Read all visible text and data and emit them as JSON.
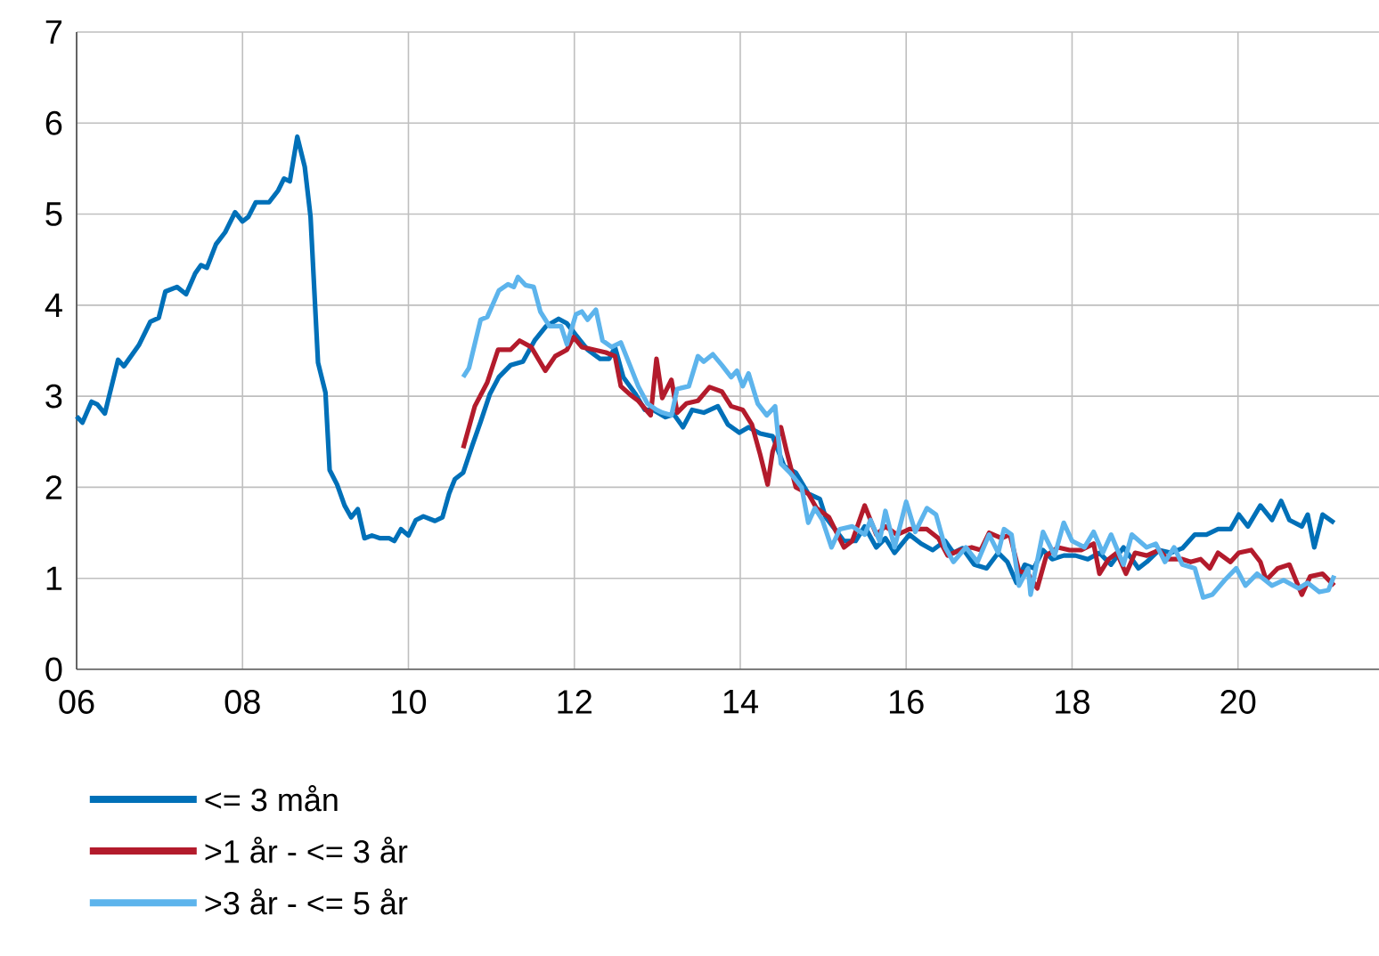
{
  "chart_data": {
    "type": "line",
    "xlim": [
      2006,
      2021.7
    ],
    "ylim": [
      0,
      7
    ],
    "xticks": [
      {
        "value": 2006,
        "label": "06"
      },
      {
        "value": 2008,
        "label": "08"
      },
      {
        "value": 2010,
        "label": "10"
      },
      {
        "value": 2012,
        "label": "12"
      },
      {
        "value": 2014,
        "label": "14"
      },
      {
        "value": 2016,
        "label": "16"
      },
      {
        "value": 2018,
        "label": "18"
      },
      {
        "value": 2020,
        "label": "20"
      }
    ],
    "yticks": [
      0,
      1,
      2,
      3,
      4,
      5,
      6,
      7
    ],
    "grid": true,
    "legend": "bottom",
    "series": [
      {
        "name": "<= 3 mån",
        "color": "#0070b8",
        "x": [
          2006.0,
          2006.07,
          2006.18,
          2006.25,
          2006.34,
          2006.5,
          2006.57,
          2006.75,
          2006.89,
          2006.99,
          2007.07,
          2007.21,
          2007.32,
          2007.43,
          2007.5,
          2007.57,
          2007.68,
          2007.79,
          2007.91,
          2008.0,
          2008.07,
          2008.16,
          2008.32,
          2008.43,
          2008.5,
          2008.57,
          2008.66,
          2008.75,
          2008.82,
          2008.91,
          2009.0,
          2009.05,
          2009.14,
          2009.23,
          2009.31,
          2009.39,
          2009.47,
          2009.56,
          2009.66,
          2009.77,
          2009.83,
          2009.91,
          2010.0,
          2010.09,
          2010.18,
          2010.32,
          2010.41,
          2010.49,
          2010.56,
          2010.66,
          2010.77,
          2010.87,
          2010.98,
          2011.09,
          2011.23,
          2011.38,
          2011.52,
          2011.66,
          2011.81,
          2011.91,
          2012.02,
          2012.16,
          2012.31,
          2012.42,
          2012.49,
          2012.59,
          2012.74,
          2012.85,
          2012.95,
          2013.1,
          2013.2,
          2013.31,
          2013.42,
          2013.56,
          2013.73,
          2013.85,
          2013.99,
          2014.1,
          2014.24,
          2014.39,
          2014.53,
          2014.67,
          2014.82,
          2014.96,
          2015.03,
          2015.14,
          2015.25,
          2015.39,
          2015.5,
          2015.64,
          2015.75,
          2015.86,
          2016.04,
          2016.18,
          2016.32,
          2016.47,
          2016.57,
          2016.68,
          2016.82,
          2016.97,
          2017.11,
          2017.22,
          2017.33,
          2017.43,
          2017.54,
          2017.65,
          2017.76,
          2017.9,
          2018.04,
          2018.19,
          2018.33,
          2018.47,
          2018.62,
          2018.8,
          2018.9,
          2019.05,
          2019.19,
          2019.33,
          2019.48,
          2019.62,
          2019.76,
          2019.91,
          2020.01,
          2020.12,
          2020.27,
          2020.41,
          2020.52,
          2020.62,
          2020.77,
          2020.84,
          2020.92,
          2021.02,
          2021.16
        ],
        "values": [
          2.78,
          2.71,
          2.94,
          2.91,
          2.81,
          3.4,
          3.33,
          3.56,
          3.82,
          3.86,
          4.15,
          4.2,
          4.12,
          4.35,
          4.44,
          4.41,
          4.67,
          4.8,
          5.02,
          4.92,
          4.97,
          5.13,
          5.13,
          5.26,
          5.39,
          5.36,
          5.85,
          5.52,
          4.97,
          3.37,
          3.04,
          2.19,
          2.03,
          1.8,
          1.67,
          1.76,
          1.44,
          1.47,
          1.44,
          1.44,
          1.41,
          1.54,
          1.47,
          1.64,
          1.68,
          1.63,
          1.67,
          1.93,
          2.09,
          2.16,
          2.46,
          2.72,
          3.02,
          3.21,
          3.34,
          3.38,
          3.61,
          3.77,
          3.85,
          3.8,
          3.67,
          3.51,
          3.41,
          3.41,
          3.54,
          3.21,
          3.02,
          2.85,
          2.85,
          2.77,
          2.8,
          2.66,
          2.85,
          2.82,
          2.89,
          2.69,
          2.6,
          2.66,
          2.59,
          2.56,
          2.23,
          2.16,
          1.93,
          1.87,
          1.67,
          1.54,
          1.41,
          1.41,
          1.57,
          1.34,
          1.44,
          1.28,
          1.48,
          1.38,
          1.31,
          1.41,
          1.28,
          1.33,
          1.15,
          1.11,
          1.28,
          1.18,
          0.95,
          1.15,
          1.11,
          1.31,
          1.21,
          1.25,
          1.25,
          1.21,
          1.28,
          1.15,
          1.34,
          1.11,
          1.18,
          1.31,
          1.28,
          1.33,
          1.48,
          1.48,
          1.54,
          1.54,
          1.7,
          1.57,
          1.8,
          1.64,
          1.85,
          1.64,
          1.57,
          1.7,
          1.34,
          1.7,
          1.61
        ]
      },
      {
        "name": ">1 år - <= 3 år",
        "color": "#b31b2c",
        "x": [
          2010.66,
          2010.8,
          2010.95,
          2011.08,
          2011.23,
          2011.34,
          2011.48,
          2011.65,
          2011.77,
          2011.91,
          2011.99,
          2012.09,
          2012.24,
          2012.38,
          2012.49,
          2012.56,
          2012.67,
          2012.77,
          2012.92,
          2012.99,
          2013.06,
          2013.17,
          2013.24,
          2013.35,
          2013.49,
          2013.63,
          2013.78,
          2013.89,
          2014.03,
          2014.14,
          2014.24,
          2014.33,
          2014.39,
          2014.49,
          2014.56,
          2014.67,
          2014.82,
          2014.92,
          2015.07,
          2015.25,
          2015.35,
          2015.5,
          2015.64,
          2015.75,
          2015.89,
          2016.04,
          2016.25,
          2016.39,
          2016.5,
          2016.65,
          2016.79,
          2016.9,
          2017.0,
          2017.15,
          2017.25,
          2017.36,
          2017.47,
          2017.58,
          2017.69,
          2017.83,
          2017.97,
          2018.11,
          2018.26,
          2018.33,
          2018.44,
          2018.54,
          2018.65,
          2018.76,
          2018.9,
          2019.05,
          2019.15,
          2019.33,
          2019.43,
          2019.55,
          2019.66,
          2019.76,
          2019.91,
          2020.01,
          2020.16,
          2020.27,
          2020.34,
          2020.48,
          2020.62,
          2020.77,
          2020.87,
          2021.02,
          2021.16
        ],
        "values": [
          2.43,
          2.89,
          3.15,
          3.51,
          3.51,
          3.61,
          3.54,
          3.28,
          3.44,
          3.51,
          3.65,
          3.54,
          3.51,
          3.48,
          3.44,
          3.11,
          3.02,
          2.95,
          2.79,
          3.41,
          2.98,
          3.18,
          2.82,
          2.92,
          2.95,
          3.1,
          3.05,
          2.89,
          2.85,
          2.69,
          2.36,
          2.03,
          2.39,
          2.66,
          2.39,
          2.0,
          1.93,
          1.77,
          1.67,
          1.34,
          1.41,
          1.8,
          1.48,
          1.57,
          1.48,
          1.54,
          1.54,
          1.44,
          1.25,
          1.31,
          1.34,
          1.31,
          1.5,
          1.44,
          1.48,
          1.08,
          1.05,
          0.89,
          1.25,
          1.34,
          1.31,
          1.31,
          1.38,
          1.05,
          1.21,
          1.28,
          1.05,
          1.28,
          1.25,
          1.31,
          1.21,
          1.21,
          1.18,
          1.21,
          1.11,
          1.28,
          1.18,
          1.28,
          1.31,
          1.18,
          0.98,
          1.11,
          1.15,
          0.82,
          1.02,
          1.05,
          0.92
        ]
      },
      {
        "name": ">3 år - <= 5 år",
        "color": "#5db4ec",
        "x": [
          2010.66,
          2010.73,
          2010.87,
          2010.95,
          2011.09,
          2011.2,
          2011.27,
          2011.32,
          2011.41,
          2011.51,
          2011.59,
          2011.7,
          2011.84,
          2011.91,
          2012.02,
          2012.09,
          2012.16,
          2012.26,
          2012.34,
          2012.45,
          2012.56,
          2012.67,
          2012.77,
          2012.88,
          2012.99,
          2013.06,
          2013.17,
          2013.24,
          2013.38,
          2013.49,
          2013.56,
          2013.67,
          2013.78,
          2013.89,
          2013.96,
          2014.03,
          2014.1,
          2014.21,
          2014.32,
          2014.42,
          2014.49,
          2014.6,
          2014.74,
          2014.82,
          2014.9,
          2014.99,
          2015.1,
          2015.2,
          2015.35,
          2015.5,
          2015.57,
          2015.68,
          2015.75,
          2015.86,
          2016.0,
          2016.11,
          2016.25,
          2016.36,
          2016.47,
          2016.57,
          2016.72,
          2016.86,
          2017.0,
          2017.11,
          2017.18,
          2017.27,
          2017.36,
          2017.47,
          2017.5,
          2017.65,
          2017.79,
          2017.9,
          2018.0,
          2018.15,
          2018.26,
          2018.37,
          2018.47,
          2018.62,
          2018.72,
          2018.9,
          2019.01,
          2019.12,
          2019.23,
          2019.33,
          2019.48,
          2019.58,
          2019.69,
          2019.84,
          2019.98,
          2020.09,
          2020.23,
          2020.41,
          2020.55,
          2020.73,
          2020.84,
          2020.98,
          2021.09,
          2021.16
        ],
        "values": [
          3.21,
          3.31,
          3.84,
          3.87,
          4.16,
          4.23,
          4.2,
          4.31,
          4.22,
          4.2,
          3.93,
          3.77,
          3.77,
          3.57,
          3.9,
          3.93,
          3.84,
          3.95,
          3.61,
          3.54,
          3.59,
          3.34,
          3.11,
          2.92,
          2.85,
          2.82,
          2.79,
          3.08,
          3.11,
          3.44,
          3.38,
          3.46,
          3.34,
          3.21,
          3.28,
          3.11,
          3.25,
          2.92,
          2.79,
          2.89,
          2.26,
          2.16,
          2.0,
          1.61,
          1.77,
          1.64,
          1.34,
          1.54,
          1.57,
          1.48,
          1.64,
          1.41,
          1.74,
          1.34,
          1.84,
          1.51,
          1.77,
          1.7,
          1.34,
          1.18,
          1.34,
          1.18,
          1.48,
          1.28,
          1.54,
          1.48,
          0.92,
          1.11,
          0.82,
          1.51,
          1.25,
          1.61,
          1.41,
          1.34,
          1.51,
          1.28,
          1.48,
          1.15,
          1.48,
          1.34,
          1.38,
          1.18,
          1.34,
          1.15,
          1.11,
          0.79,
          0.82,
          0.98,
          1.11,
          0.92,
          1.05,
          0.92,
          0.98,
          0.89,
          0.95,
          0.85,
          0.87,
          1.03
        ]
      }
    ]
  }
}
